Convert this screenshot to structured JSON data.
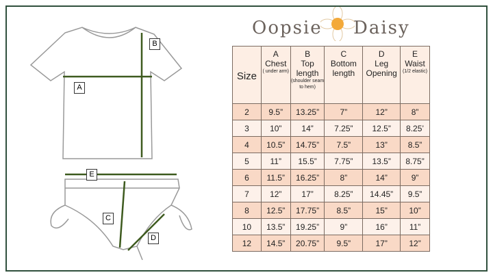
{
  "logo": {
    "left": "Oopsie",
    "right": "Daisy"
  },
  "labels": {
    "a": "A",
    "b": "B",
    "c": "C",
    "d": "D",
    "e": "E"
  },
  "headers": [
    {
      "letter": "Size",
      "name": "",
      "note": ""
    },
    {
      "letter": "A",
      "name": "Chest",
      "note": "( under arm)"
    },
    {
      "letter": "B",
      "name": "Top length",
      "note": "(shoulder seam to hem)"
    },
    {
      "letter": "C",
      "name": "Bottom length",
      "note": ""
    },
    {
      "letter": "D",
      "name": "Leg Opening",
      "note": ""
    },
    {
      "letter": "E",
      "name": "Waist",
      "note": "(1/2 elastic)"
    }
  ],
  "rows": [
    [
      "2",
      "9.5”",
      "13.25”",
      "7”",
      "12”",
      "8”"
    ],
    [
      "3",
      "10”",
      "14”",
      "7.25”",
      "12.5”",
      "8.25’"
    ],
    [
      "4",
      "10.5”",
      "14.75”",
      "7.5”",
      "13”",
      "8.5”"
    ],
    [
      "5",
      "11”",
      "15.5”",
      "7.75”",
      "13.5”",
      "8.75”"
    ],
    [
      "6",
      "11.5”",
      "16.25”",
      "8”",
      "14”",
      "9”"
    ],
    [
      "7",
      "12”",
      "17”",
      "8.25”",
      "14.45”",
      "9.5”"
    ],
    [
      "8",
      "12.5”",
      "17.75”",
      "8.5”",
      "15”",
      "10”"
    ],
    [
      "10",
      "13.5”",
      "19.25”",
      "9”",
      "16”",
      "11”"
    ],
    [
      "12",
      "14.5”",
      "20.75”",
      "9.5”",
      "17”",
      "12”"
    ]
  ],
  "colors": {
    "frame": "#2f4f3c",
    "arrow": "#3d5a1e",
    "row_dark": "#f9d9c6",
    "row_light": "#fdf1ea"
  }
}
